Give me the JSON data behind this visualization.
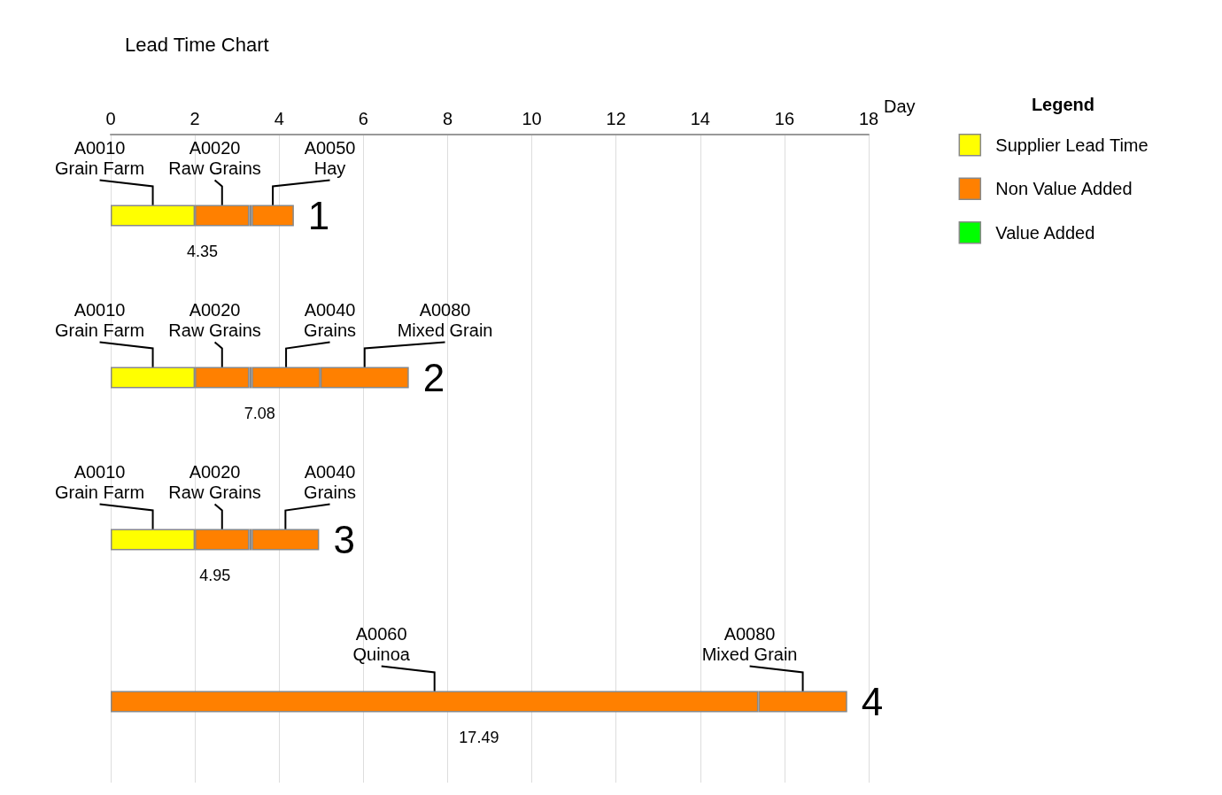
{
  "chart_data": {
    "type": "bar",
    "orientation": "horizontal",
    "stacked": true,
    "title": "Lead Time Chart",
    "xlabel": "Day",
    "legend_title": "Legend",
    "legend": "right",
    "grid": "x",
    "categories": [
      "1",
      "2",
      "3",
      "4"
    ],
    "xlim": [
      0,
      18
    ],
    "xticks": [
      0,
      2,
      4,
      6,
      8,
      10,
      12,
      14,
      16,
      18
    ],
    "series": [
      {
        "name": "Supplier Lead Time",
        "color": "#ffff00",
        "values": [
          2,
          2,
          2,
          null
        ]
      },
      {
        "name": "Non Value Added",
        "color": "#ff8000",
        "values": [
          1.29,
          1.29,
          1.29,
          15.38
        ]
      },
      {
        "name": "Value Added",
        "color": "#00ff00",
        "values": [
          0.06,
          0.06,
          0.06,
          null
        ]
      },
      {
        "color": "#ff8000",
        "values": [
          1.0,
          1.63,
          1.6,
          2.11
        ]
      },
      {
        "color": "#ff8000",
        "values": [
          null,
          2.1,
          null,
          null
        ]
      }
    ],
    "totals": [
      "4.35",
      "7.08",
      "4.95",
      "17.49"
    ],
    "annotations": [
      "A0010\nGrain Farm",
      "A0020\nRaw Grains",
      "A0050\nHay",
      "A0010\nGrain Farm",
      "A0020\nRaw Grains",
      "A0040\nGrains",
      "A0080\nMixed Grain",
      "A0010\nGrain Farm",
      "A0020\nRaw Grains",
      "A0040\nGrains",
      "A0060\nQuinoa",
      "A0080\nMixed Grain"
    ]
  }
}
